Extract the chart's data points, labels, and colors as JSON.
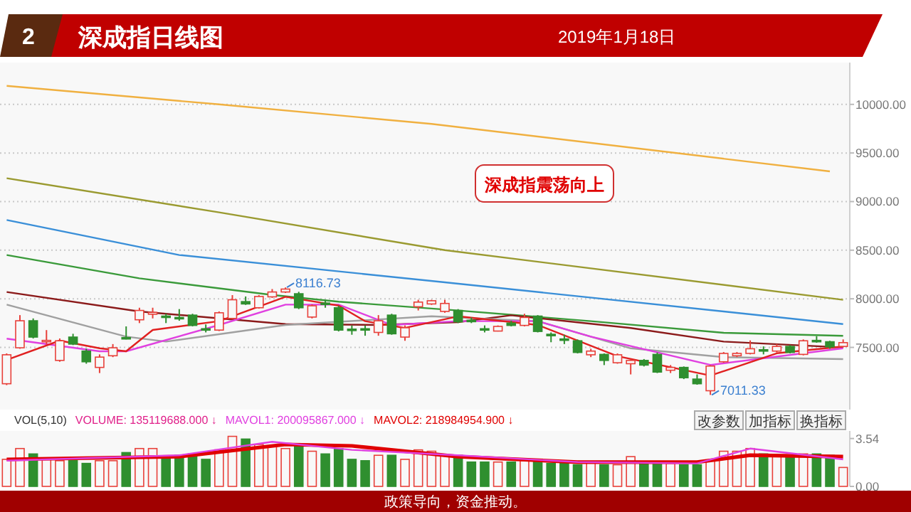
{
  "chart_data": [
    {
      "type": "candlestick",
      "title": "深成指日线图",
      "subtitle": "2019年1月18日",
      "categories": [
        null,
        null,
        null,
        null,
        null,
        null,
        null,
        null,
        null,
        null,
        null,
        null,
        null,
        null,
        null,
        null,
        null,
        null,
        null,
        null,
        null,
        null,
        null,
        null,
        null,
        null,
        null,
        null,
        null,
        null,
        null,
        null,
        null,
        null,
        null,
        null,
        null,
        null,
        null,
        null,
        null,
        null,
        null,
        null,
        null,
        null,
        null,
        null,
        null,
        null,
        null,
        null,
        null,
        null,
        null,
        null,
        null,
        null,
        null,
        null,
        null,
        null,
        null,
        null
      ],
      "ohlc": [
        [
          7126,
          7438,
          7112,
          7424
        ],
        [
          7496,
          7832,
          7486,
          7774
        ],
        [
          7774,
          7798,
          7592,
          7606
        ],
        [
          7558,
          7678,
          7534,
          7572
        ],
        [
          7366,
          7592,
          7352,
          7568
        ],
        [
          7606,
          7640,
          7524,
          7534
        ],
        [
          7462,
          7486,
          7332,
          7352
        ],
        [
          7294,
          7428,
          7236,
          7400
        ],
        [
          7414,
          7534,
          7400,
          7496
        ],
        [
          7601,
          7716,
          7582,
          7592
        ],
        [
          7784,
          7908,
          7750,
          7880
        ],
        [
          7841,
          7908,
          7798,
          7860
        ],
        [
          7822,
          7846,
          7750,
          7812
        ],
        [
          7808,
          7894,
          7774,
          7798
        ],
        [
          7832,
          7846,
          7716,
          7726
        ],
        [
          7692,
          7736,
          7654,
          7683
        ],
        [
          7678,
          7870,
          7668,
          7856
        ],
        [
          7798,
          8038,
          7788,
          7990
        ],
        [
          7971,
          8024,
          7937,
          7947
        ],
        [
          7908,
          8038,
          7899,
          8024
        ],
        [
          8020,
          8100,
          8010,
          8070
        ],
        [
          8070,
          8116.73,
          8060,
          8100
        ],
        [
          8052,
          8072,
          7894,
          7908
        ],
        [
          7812,
          7942,
          7798,
          7928
        ],
        [
          7956,
          7985,
          7908,
          7942
        ],
        [
          7908,
          7928,
          7664,
          7678
        ],
        [
          7688,
          7726,
          7630,
          7673
        ],
        [
          7692,
          7726,
          7620,
          7683
        ],
        [
          7654,
          7832,
          7620,
          7774
        ],
        [
          7832,
          7846,
          7630,
          7640
        ],
        [
          7606,
          7726,
          7568,
          7702
        ],
        [
          7918,
          7990,
          7880,
          7966
        ],
        [
          7947,
          7990,
          7937,
          7980
        ],
        [
          7870,
          7990,
          7856,
          7952
        ],
        [
          7880,
          7894,
          7750,
          7764
        ],
        [
          7779,
          7808,
          7750,
          7769
        ],
        [
          7692,
          7726,
          7654,
          7683
        ],
        [
          7668,
          7726,
          7664,
          7716
        ],
        [
          7750,
          7774,
          7716,
          7726
        ],
        [
          7726,
          7846,
          7716,
          7808
        ],
        [
          7822,
          7832,
          7654,
          7664
        ],
        [
          7635,
          7654,
          7553,
          7620
        ],
        [
          7587,
          7630,
          7534,
          7577
        ],
        [
          7568,
          7582,
          7438,
          7448
        ],
        [
          7424,
          7486,
          7400,
          7462
        ],
        [
          7428,
          7438,
          7318,
          7366
        ],
        [
          7342,
          7438,
          7332,
          7424
        ],
        [
          7332,
          7380,
          7222,
          7366
        ],
        [
          7366,
          7380,
          7304,
          7318
        ],
        [
          7428,
          7448,
          7236,
          7246
        ],
        [
          7265,
          7318,
          7236,
          7294
        ],
        [
          7294,
          7304,
          7174,
          7188
        ],
        [
          7174,
          7222,
          7116,
          7126
        ],
        [
          7054,
          7318,
          7011.33,
          7308
        ],
        [
          7352,
          7452,
          7342,
          7438
        ],
        [
          7414,
          7452,
          7400,
          7438
        ],
        [
          7438,
          7572,
          7428,
          7486
        ],
        [
          7476,
          7510,
          7428,
          7462
        ],
        [
          7462,
          7534,
          7448,
          7510
        ],
        [
          7510,
          7524,
          7438,
          7448
        ],
        [
          7428,
          7582,
          7418,
          7568
        ],
        [
          7572,
          7616,
          7548,
          7563
        ],
        [
          7558,
          7568,
          7486,
          7505
        ],
        [
          7510,
          7582,
          7500,
          7549
        ]
      ],
      "colors": [
        "#e8403a",
        "#e8403a",
        "#2f8f2f",
        "#e8403a",
        "#e8403a",
        "#2f8f2f",
        "#2f8f2f",
        "#e8403a",
        "#e8403a",
        "#2f8f2f",
        "#e8403a",
        "#e8403a",
        "#2f8f2f",
        "#2f8f2f",
        "#2f8f2f",
        "#2f8f2f",
        "#e8403a",
        "#e8403a",
        "#2f8f2f",
        "#e8403a",
        "#e8403a",
        "#e8403a",
        "#2f8f2f",
        "#e8403a",
        "#2f8f2f",
        "#2f8f2f",
        "#2f8f2f",
        "#2f8f2f",
        "#e8403a",
        "#2f8f2f",
        "#e8403a",
        "#e8403a",
        "#e8403a",
        "#e8403a",
        "#2f8f2f",
        "#2f8f2f",
        "#2f8f2f",
        "#e8403a",
        "#2f8f2f",
        "#e8403a",
        "#2f8f2f",
        "#2f8f2f",
        "#2f8f2f",
        "#2f8f2f",
        "#e8403a",
        "#2f8f2f",
        "#e8403a",
        "#e8403a",
        "#2f8f2f",
        "#2f8f2f",
        "#e8403a",
        "#2f8f2f",
        "#2f8f2f",
        "#e8403a",
        "#e8403a",
        "#e8403a",
        "#e8403a",
        "#2f8f2f",
        "#e8403a",
        "#2f8f2f",
        "#e8403a",
        "#2f8f2f",
        "#2f8f2f",
        "#e8403a"
      ],
      "series": [
        {
          "type": "line",
          "color": "#f0b040",
          "values": [
            10190,
            null,
            null,
            null,
            null,
            null,
            null,
            null,
            null,
            null,
            null,
            null,
            null,
            null,
            null,
            null,
            10000,
            null,
            null,
            null,
            null,
            null,
            null,
            null,
            null,
            null,
            null,
            null,
            null,
            null,
            null,
            null,
            9800,
            null,
            null,
            null,
            null,
            null,
            null,
            null,
            null,
            null,
            null,
            null,
            null,
            null,
            null,
            null,
            null,
            null,
            null,
            null,
            null,
            null,
            null,
            null,
            null,
            null,
            null,
            null,
            null,
            null,
            9310,
            null
          ]
        },
        {
          "type": "line",
          "color": "#9a9a30",
          "values": [
            9240,
            null,
            null,
            null,
            null,
            null,
            null,
            null,
            null,
            null,
            null,
            null,
            null,
            null,
            null,
            null,
            8890,
            null,
            null,
            null,
            null,
            null,
            null,
            null,
            null,
            null,
            null,
            null,
            null,
            null,
            null,
            null,
            null,
            8500,
            null,
            null,
            null,
            null,
            null,
            null,
            null,
            null,
            null,
            null,
            null,
            null,
            null,
            null,
            null,
            null,
            null,
            null,
            null,
            null,
            null,
            null,
            null,
            null,
            null,
            null,
            null,
            null,
            null,
            7990
          ]
        },
        {
          "type": "line",
          "color": "#3a8fd8",
          "values": [
            8810,
            null,
            null,
            null,
            null,
            null,
            null,
            null,
            null,
            null,
            null,
            null,
            null,
            8450,
            null,
            null,
            null,
            null,
            null,
            null,
            null,
            null,
            null,
            null,
            null,
            null,
            null,
            null,
            null,
            null,
            null,
            null,
            null,
            8170,
            null,
            null,
            null,
            null,
            null,
            null,
            null,
            null,
            null,
            null,
            null,
            null,
            null,
            null,
            null,
            null,
            null,
            null,
            null,
            null,
            7870,
            null,
            null,
            null,
            null,
            null,
            null,
            null,
            null,
            7740
          ]
        },
        {
          "type": "line",
          "color": "#3a9a3a",
          "values": [
            8450,
            null,
            null,
            null,
            null,
            null,
            null,
            null,
            null,
            null,
            8210,
            null,
            null,
            null,
            null,
            null,
            null,
            null,
            null,
            null,
            8040,
            null,
            null,
            null,
            null,
            7970,
            null,
            null,
            null,
            null,
            null,
            null,
            null,
            null,
            7880,
            null,
            null,
            null,
            null,
            null,
            null,
            null,
            null,
            null,
            7770,
            null,
            null,
            null,
            null,
            null,
            null,
            null,
            null,
            null,
            7650,
            null,
            null,
            null,
            null,
            null,
            null,
            null,
            null,
            7620
          ]
        },
        {
          "type": "line",
          "color": "#8b1a1a",
          "values": [
            8070,
            null,
            null,
            null,
            null,
            null,
            null,
            null,
            null,
            null,
            7870,
            null,
            null,
            null,
            null,
            null,
            null,
            null,
            null,
            null,
            null,
            7740,
            null,
            null,
            null,
            null,
            null,
            null,
            7730,
            null,
            null,
            null,
            null,
            null,
            7760,
            null,
            null,
            null,
            7830,
            null,
            null,
            null,
            null,
            null,
            null,
            null,
            null,
            7700,
            null,
            null,
            null,
            null,
            null,
            null,
            7560,
            null,
            null,
            null,
            null,
            null,
            null,
            null,
            null,
            7500
          ]
        },
        {
          "type": "line",
          "color": "#a0a0a0",
          "values": [
            7940,
            null,
            null,
            null,
            null,
            null,
            null,
            null,
            null,
            7610,
            null,
            null,
            7560,
            null,
            null,
            null,
            null,
            null,
            null,
            null,
            null,
            7730,
            null,
            null,
            null,
            null,
            null,
            null,
            null,
            null,
            null,
            null,
            7820,
            null,
            null,
            null,
            null,
            null,
            null,
            null,
            7770,
            null,
            null,
            null,
            null,
            null,
            null,
            7490,
            null,
            null,
            null,
            null,
            null,
            null,
            7400,
            null,
            null,
            null,
            null,
            null,
            null,
            null,
            null,
            7380
          ]
        },
        {
          "type": "line",
          "color": "#e040e0",
          "values": [
            7590,
            null,
            null,
            null,
            null,
            null,
            null,
            7460,
            null,
            7460,
            null,
            null,
            null,
            null,
            null,
            null,
            7730,
            null,
            null,
            null,
            null,
            7940,
            null,
            null,
            null,
            7940,
            null,
            null,
            null,
            7730,
            null,
            null,
            null,
            null,
            7770,
            null,
            null,
            null,
            null,
            null,
            7770,
            null,
            null,
            null,
            7610,
            null,
            null,
            null,
            null,
            null,
            null,
            null,
            null,
            7320,
            null,
            null,
            null,
            null,
            null,
            null,
            null,
            null,
            null,
            7490
          ]
        },
        {
          "type": "line",
          "color": "#e02020",
          "values": [
            7370,
            null,
            null,
            null,
            7570,
            null,
            null,
            7490,
            null,
            7460,
            null,
            7680,
            null,
            null,
            null,
            null,
            7770,
            null,
            null,
            null,
            null,
            8020,
            null,
            null,
            null,
            7930,
            null,
            7770,
            null,
            null,
            7700,
            null,
            null,
            null,
            7820,
            null,
            null,
            null,
            null,
            null,
            7730,
            null,
            null,
            null,
            null,
            null,
            7410,
            null,
            null,
            null,
            null,
            null,
            null,
            7210,
            null,
            null,
            null,
            null,
            7440,
            null,
            null,
            null,
            null,
            7510
          ]
        }
      ],
      "ylim": [
        6860,
        10430
      ],
      "yticks": [
        {
          "value": 7500,
          "label": "7500.00"
        },
        {
          "value": 8000,
          "label": "8000.00"
        },
        {
          "value": 8500,
          "label": "8500.00"
        },
        {
          "value": 9000,
          "label": "9000.00"
        },
        {
          "value": 9500,
          "label": "9500.00"
        },
        {
          "value": 10000,
          "label": "10000.00"
        }
      ],
      "grid": "y",
      "annotations": [
        "2",
        "8116.73",
        "7011.33",
        "深成指震荡向上",
        "政策导向，资金推动。"
      ]
    },
    {
      "type": "bar",
      "title": "VOL(5,10)",
      "categories": [
        null,
        null,
        null,
        null,
        null,
        null,
        null,
        null,
        null,
        null,
        null,
        null,
        null,
        null,
        null,
        null,
        null,
        null,
        null,
        null,
        null,
        null,
        null,
        null,
        null,
        null,
        null,
        null,
        null,
        null,
        null,
        null,
        null,
        null,
        null,
        null,
        null,
        null,
        null,
        null,
        null,
        null,
        null,
        null,
        null,
        null,
        null,
        null,
        null,
        null,
        null,
        null,
        null,
        null,
        null,
        null,
        null,
        null,
        null,
        null,
        null,
        null,
        null,
        null
      ],
      "values": [
        2.0,
        2.8,
        2.4,
        2.0,
        1.9,
        1.9,
        1.7,
        1.9,
        1.9,
        2.5,
        2.8,
        2.8,
        2.2,
        2.3,
        2.4,
        2.0,
        2.7,
        3.7,
        3.5,
        3.1,
        3.0,
        2.8,
        3.0,
        2.6,
        2.4,
        2.8,
        2.0,
        1.9,
        2.3,
        2.3,
        2.0,
        2.7,
        2.6,
        2.3,
        2.3,
        1.8,
        1.8,
        1.8,
        1.8,
        1.9,
        2.0,
        1.7,
        1.7,
        1.6,
        1.8,
        1.6,
        1.6,
        2.2,
        1.8,
        1.7,
        1.7,
        1.6,
        1.6,
        1.9,
        2.6,
        2.6,
        2.8,
        2.4,
        2.3,
        2.3,
        2.4,
        2.4,
        2.3,
        1.4
      ],
      "colors": [
        "#e8403a",
        "#e8403a",
        "#2f8f2f",
        "#e8403a",
        "#e8403a",
        "#2f8f2f",
        "#2f8f2f",
        "#e8403a",
        "#e8403a",
        "#2f8f2f",
        "#e8403a",
        "#e8403a",
        "#2f8f2f",
        "#2f8f2f",
        "#2f8f2f",
        "#2f8f2f",
        "#e8403a",
        "#e8403a",
        "#2f8f2f",
        "#e8403a",
        "#e8403a",
        "#e8403a",
        "#2f8f2f",
        "#e8403a",
        "#2f8f2f",
        "#2f8f2f",
        "#2f8f2f",
        "#2f8f2f",
        "#e8403a",
        "#2f8f2f",
        "#e8403a",
        "#e8403a",
        "#e8403a",
        "#e8403a",
        "#2f8f2f",
        "#2f8f2f",
        "#2f8f2f",
        "#e8403a",
        "#2f8f2f",
        "#e8403a",
        "#2f8f2f",
        "#2f8f2f",
        "#2f8f2f",
        "#2f8f2f",
        "#e8403a",
        "#2f8f2f",
        "#e8403a",
        "#e8403a",
        "#2f8f2f",
        "#2f8f2f",
        "#e8403a",
        "#2f8f2f",
        "#2f8f2f",
        "#e8403a",
        "#e8403a",
        "#e8403a",
        "#e8403a",
        "#2f8f2f",
        "#e8403a",
        "#2f8f2f",
        "#e8403a",
        "#2f8f2f",
        "#2f8f2f",
        "#e8403a"
      ],
      "series": [
        {
          "type": "line",
          "color": "#e040e0",
          "values": [
            1.9,
            null,
            null,
            null,
            null,
            null,
            null,
            null,
            null,
            null,
            null,
            null,
            null,
            2.3,
            null,
            null,
            null,
            null,
            null,
            null,
            3.3,
            null,
            null,
            null,
            null,
            null,
            2.7,
            null,
            null,
            null,
            null,
            null,
            null,
            null,
            2.3,
            null,
            null,
            null,
            null,
            null,
            null,
            null,
            null,
            1.8,
            null,
            null,
            null,
            null,
            null,
            null,
            null,
            null,
            1.7,
            null,
            null,
            null,
            2.8,
            null,
            null,
            null,
            null,
            null,
            null,
            2.0
          ]
        },
        {
          "type": "line",
          "color": "#e00000",
          "values": [
            2.0,
            null,
            null,
            null,
            null,
            null,
            null,
            null,
            null,
            null,
            null,
            null,
            null,
            2.2,
            null,
            null,
            null,
            null,
            null,
            null,
            null,
            3.1,
            null,
            null,
            null,
            null,
            3.0,
            null,
            null,
            null,
            null,
            null,
            null,
            null,
            2.2,
            null,
            null,
            null,
            null,
            null,
            null,
            null,
            null,
            1.8,
            null,
            null,
            null,
            null,
            null,
            null,
            null,
            null,
            1.8,
            null,
            null,
            null,
            2.3,
            null,
            null,
            null,
            null,
            null,
            null,
            2.2
          ]
        }
      ],
      "ylim": [
        0,
        4.1
      ],
      "yticks": [
        {
          "value": 0,
          "label": "0.00"
        },
        {
          "value": 3.54,
          "label": "3.54"
        }
      ],
      "annotations": [
        "VOLUME: 135119688.000 ↓",
        "MAVOL1: 200095867.000 ↓",
        "MAVOL2: 218984954.900 ↓",
        "改参数",
        "加指标",
        "换指标"
      ]
    }
  ]
}
